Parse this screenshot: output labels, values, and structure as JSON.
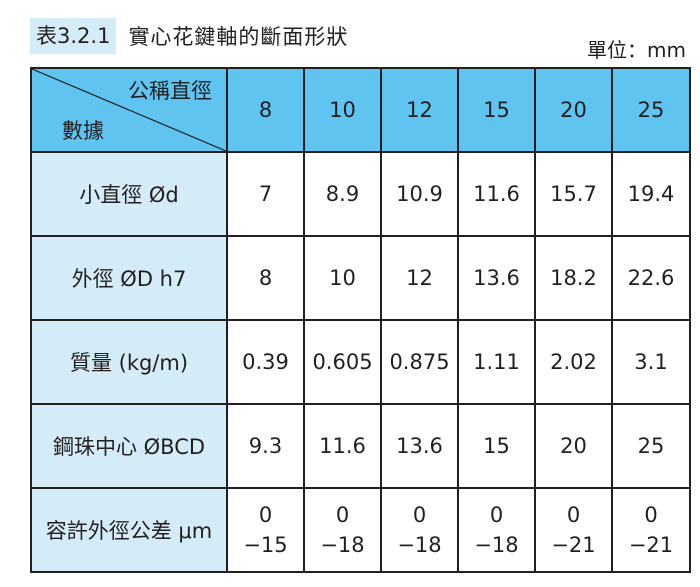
{
  "title": {
    "tag": "表3.2.1",
    "text": "實心花鍵軸的斷面形狀"
  },
  "unit_label": "單位：mm",
  "table": {
    "corner_top": "公稱直徑",
    "corner_bottom": "數據",
    "columns": [
      "8",
      "10",
      "12",
      "15",
      "20",
      "25"
    ],
    "rows": [
      {
        "label": "小直徑 Ød",
        "values": [
          "7",
          "8.9",
          "10.9",
          "11.6",
          "15.7",
          "19.4"
        ]
      },
      {
        "label": "外徑 ØD h7",
        "values": [
          "8",
          "10",
          "12",
          "13.6",
          "18.2",
          "22.6"
        ]
      },
      {
        "label": "質量 (kg/m)",
        "values": [
          "0.39",
          "0.605",
          "0.875",
          "1.11",
          "2.02",
          "3.1"
        ]
      },
      {
        "label": "鋼珠中心 ØBCD",
        "values": [
          "9.3",
          "11.6",
          "13.6",
          "15",
          "20",
          "25"
        ]
      }
    ],
    "tolerance_row": {
      "label": "容許外徑公差 μm",
      "upper": [
        "0",
        "0",
        "0",
        "0",
        "0",
        "0"
      ],
      "lower": [
        "−15",
        "−18",
        "−18",
        "−18",
        "−21",
        "−21"
      ]
    }
  },
  "colors": {
    "header_blue": "#5fc4ef",
    "label_light_blue": "#d3ecf8",
    "border": "#231f20"
  }
}
